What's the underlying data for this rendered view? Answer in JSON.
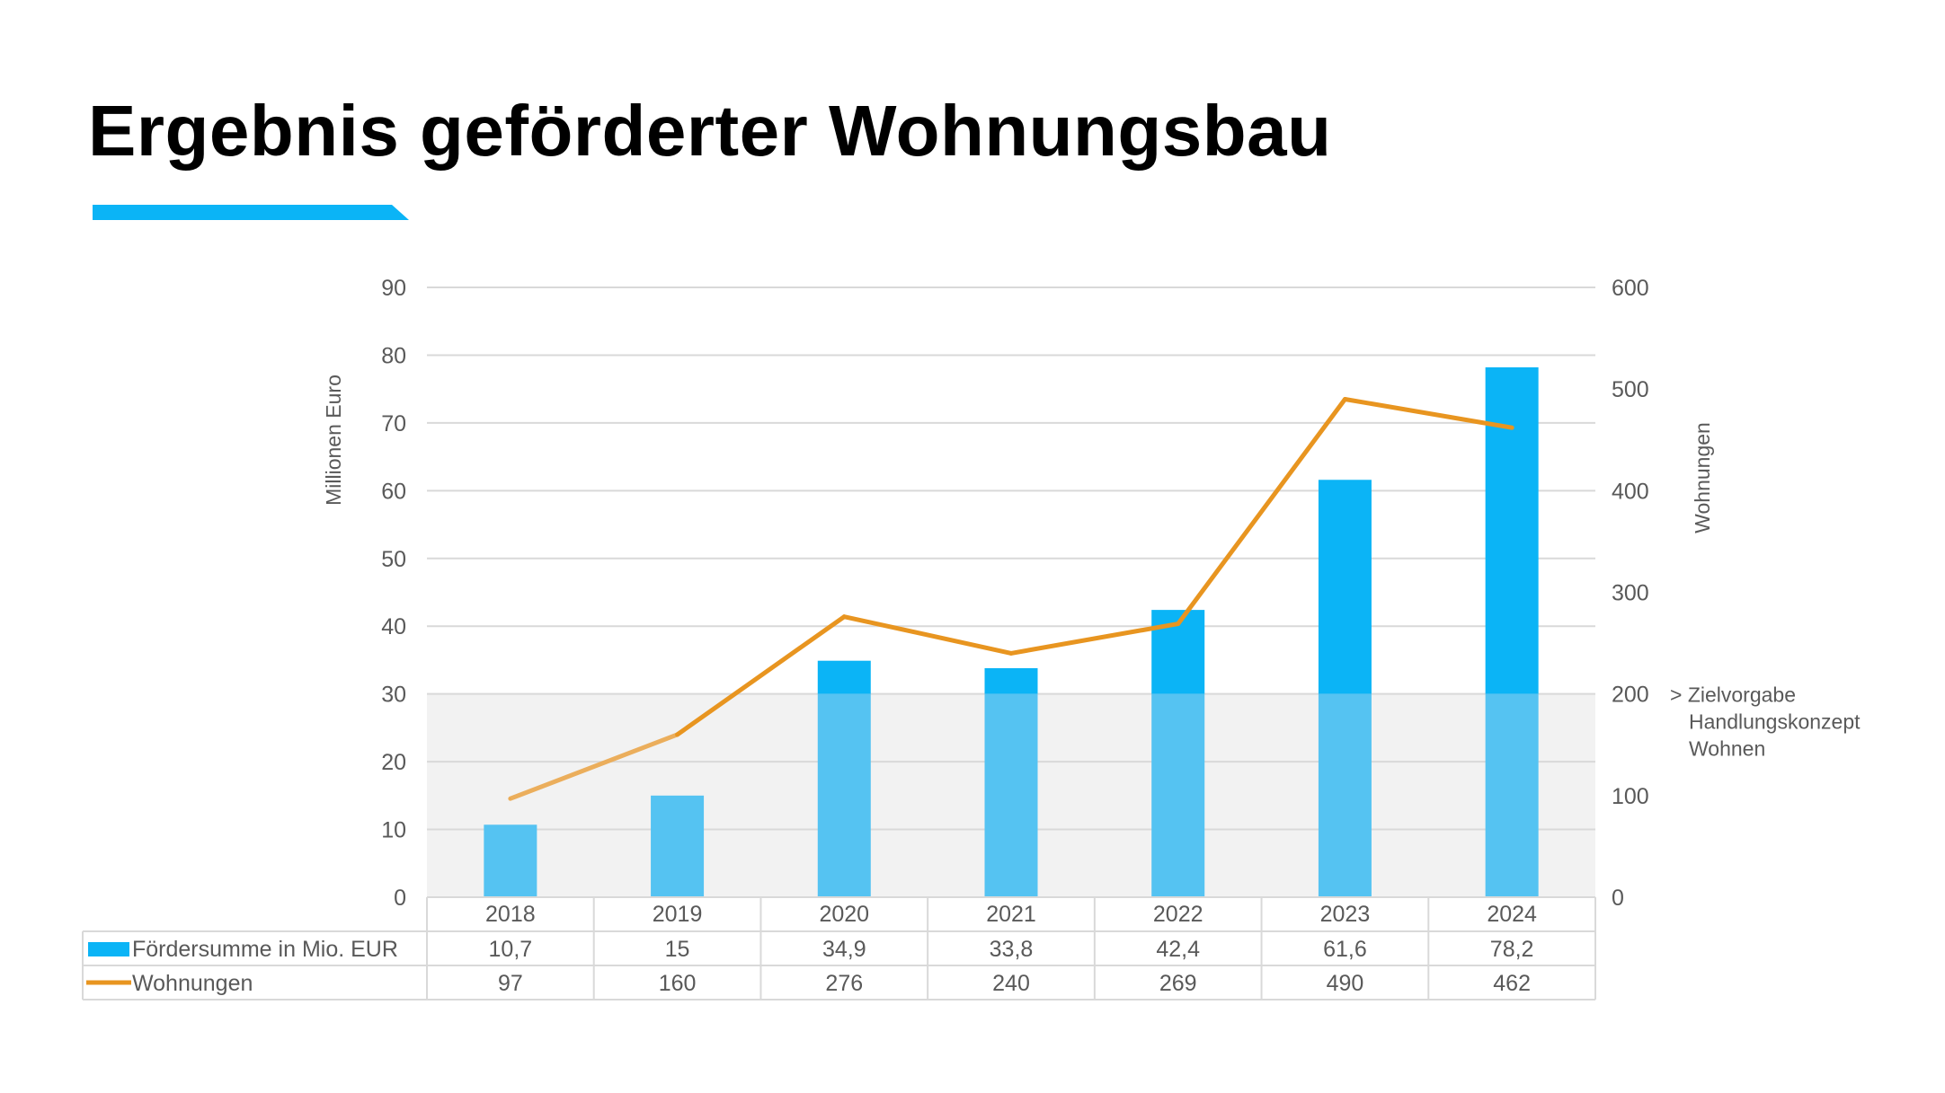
{
  "page": {
    "title": "Ergebnis geförderter Wohnungsbau"
  },
  "colors": {
    "accent": "#0BB4F6",
    "bar_dark": "#0BB4F6",
    "bar_light": "#55C3F2",
    "line": "#E89520",
    "line_light": "#EBAE5C",
    "band": "#F2F2F2",
    "grid": "#D9D9D9",
    "text": "#595959"
  },
  "chart_data": {
    "type": "bar",
    "categories": [
      "2018",
      "2019",
      "2020",
      "2021",
      "2022",
      "2023",
      "2024"
    ],
    "series": [
      {
        "name": "Fördersumme in Mio. EUR",
        "type": "bar",
        "axis": "left",
        "values": [
          10.7,
          15,
          34.9,
          33.8,
          42.4,
          61.6,
          78.2
        ],
        "labels": [
          "10,7",
          "15",
          "34,9",
          "33,8",
          "42,4",
          "61,6",
          "78,2"
        ]
      },
      {
        "name": "Wohnungen",
        "type": "line",
        "axis": "right",
        "values": [
          97,
          160,
          276,
          240,
          269,
          490,
          462
        ],
        "labels": [
          "97",
          "160",
          "276",
          "240",
          "269",
          "490",
          "462"
        ]
      }
    ],
    "ylabel_left": "Millionen Euro",
    "ylabel_right": "Wohnungen",
    "ylim_left": [
      0,
      90
    ],
    "ylim_right": [
      0,
      600
    ],
    "yticks_left": [
      0,
      10,
      20,
      30,
      40,
      50,
      60,
      70,
      80,
      90
    ],
    "yticks_right": [
      0,
      100,
      200,
      300,
      400,
      500,
      600
    ],
    "grid": true,
    "legend": "data-table",
    "target_band": {
      "axis": "right",
      "from": 0,
      "to": 200
    },
    "annotation": {
      "lines": [
        "> Zielvorgabe",
        "Handlungskonzept",
        "Wohnen"
      ]
    }
  }
}
